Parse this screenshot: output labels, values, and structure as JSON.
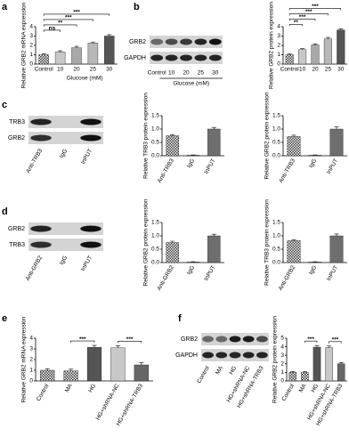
{
  "panel_labels": [
    "a",
    "b",
    "c",
    "d",
    "e",
    "f"
  ],
  "blots": [
    {
      "rows": [
        "GRB2",
        "GAPDH"
      ],
      "lanes": [
        "Control",
        "10",
        "20",
        "25",
        "30"
      ],
      "lane_title": "Glucose (mM)"
    },
    {
      "rows": [
        "TRB3",
        "GRB2"
      ],
      "lanes": [
        "Anti-TRB3",
        "IgG",
        "InPUT"
      ]
    },
    {
      "rows": [
        "GRB2",
        "TRB3"
      ],
      "lanes": [
        "Anti-GRB2",
        "IgG",
        "InPUT"
      ]
    },
    {
      "rows": [
        "GRB2",
        "GAPDH"
      ],
      "lanes": [
        "Control",
        "MA",
        "HG",
        "HG+shRNA-NC",
        "HG+shRNA-TRB3"
      ]
    }
  ],
  "chart_data": [
    {
      "type": "bar",
      "ylabel": "Relative GRB2 mRNA expression",
      "xlabel": "Glucose (mM)",
      "categories": [
        "Control",
        "10",
        "20",
        "25",
        "30"
      ],
      "values": [
        1.0,
        1.3,
        1.75,
        2.25,
        3.0
      ],
      "errors": [
        0.08,
        0.12,
        0.15,
        0.12,
        0.15
      ],
      "colors": [
        "checker",
        "#c8c8c8",
        "#a8a8a8",
        "#b8b8b8",
        "#555555"
      ],
      "ylim": [
        0,
        4
      ],
      "yticks": [
        0,
        1,
        2,
        3,
        4
      ],
      "annotations": [
        {
          "text": "ns",
          "span": [
            0,
            1
          ]
        },
        {
          "text": "**",
          "span": [
            0,
            2
          ]
        },
        {
          "text": "***",
          "span": [
            0,
            3
          ]
        },
        {
          "text": "***",
          "span": [
            0,
            4
          ]
        }
      ]
    },
    {
      "type": "bar",
      "ylabel": "Relative GRB2 protein expression",
      "categories": [
        "Control",
        "10",
        "20",
        "25",
        "30"
      ],
      "values": [
        1.0,
        1.55,
        2.05,
        2.7,
        3.65
      ],
      "errors": [
        0.08,
        0.1,
        0.12,
        0.15,
        0.12
      ],
      "colors": [
        "checker",
        "#c8c8c8",
        "#a8a8a8",
        "#b8b8b8",
        "#555555"
      ],
      "ylim": [
        0,
        4
      ],
      "yticks": [
        0,
        1,
        2,
        3,
        4
      ],
      "annotations": [
        {
          "text": "**",
          "span": [
            0,
            1
          ]
        },
        {
          "text": "***",
          "span": [
            0,
            2
          ]
        },
        {
          "text": "***",
          "span": [
            0,
            3
          ]
        },
        {
          "text": "***",
          "span": [
            0,
            4
          ]
        }
      ]
    },
    {
      "type": "bar",
      "ylabel": "Relative TRB3 protein expression",
      "categories": [
        "Anti-TRB3",
        "IgG",
        "InPUT"
      ],
      "values": [
        0.75,
        0.02,
        1.0
      ],
      "errors": [
        0.03,
        0.01,
        0.06
      ],
      "colors": [
        "checker",
        "#6e6e6e",
        "#6e6e6e"
      ],
      "ylim": [
        0,
        1.5
      ],
      "yticks": [
        {
          "value": 0,
          "label": "0.0"
        },
        {
          "value": 0.5,
          "label": "0.5"
        },
        {
          "value": 1,
          "label": "1.0"
        },
        {
          "value": 1.5,
          "label": "1.5"
        }
      ]
    },
    {
      "type": "bar",
      "ylabel": "Relative GRB2 protein expression",
      "categories": [
        "Anti-TRB3",
        "IgG",
        "InPUT"
      ],
      "values": [
        0.72,
        0.02,
        1.0
      ],
      "errors": [
        0.05,
        0.01,
        0.08
      ],
      "colors": [
        "checker",
        "#6e6e6e",
        "#6e6e6e"
      ],
      "ylim": [
        0,
        1.5
      ],
      "yticks": [
        {
          "value": 0,
          "label": "0.0"
        },
        {
          "value": 0.5,
          "label": "0.5"
        },
        {
          "value": 1,
          "label": "1.0"
        },
        {
          "value": 1.5,
          "label": "1.5"
        }
      ]
    },
    {
      "type": "bar",
      "ylabel": "Relative GRB2 protein expression",
      "categories": [
        "Anti-GRB2",
        "IgG",
        "InPUT"
      ],
      "values": [
        0.75,
        0.02,
        1.0
      ],
      "errors": [
        0.05,
        0.01,
        0.06
      ],
      "colors": [
        "checker",
        "#6e6e6e",
        "#6e6e6e"
      ],
      "ylim": [
        0,
        1.5
      ],
      "yticks": [
        {
          "value": 0,
          "label": "0.0"
        },
        {
          "value": 0.5,
          "label": "0.5"
        },
        {
          "value": 1,
          "label": "1.0"
        },
        {
          "value": 1.5,
          "label": "1.5"
        }
      ]
    },
    {
      "type": "bar",
      "ylabel": "Relative TRB3 protein expression",
      "categories": [
        "Anti-GRB2",
        "IgG",
        "InPUT"
      ],
      "values": [
        0.82,
        0.02,
        1.0
      ],
      "errors": [
        0.04,
        0.01,
        0.07
      ],
      "colors": [
        "checker",
        "#6e6e6e",
        "#6e6e6e"
      ],
      "ylim": [
        0,
        1.5
      ],
      "yticks": [
        {
          "value": 0,
          "label": "0.0"
        },
        {
          "value": 0.5,
          "label": "0.5"
        },
        {
          "value": 1,
          "label": "1.0"
        },
        {
          "value": 1.5,
          "label": "1.5"
        }
      ]
    },
    {
      "type": "bar",
      "ylabel": "Relative GRB2 mRNA expression",
      "categories": [
        "Control",
        "MA",
        "HG",
        "HG+shRNA-NC",
        "HG+shRNA-TRB3"
      ],
      "values": [
        1.0,
        0.95,
        3.15,
        3.1,
        1.5
      ],
      "errors": [
        0.15,
        0.15,
        0.18,
        0.2,
        0.2
      ],
      "colors": [
        "checker",
        "checker",
        "#555555",
        "#c8c8c8",
        "#666666"
      ],
      "ylim": [
        0,
        4
      ],
      "yticks": [
        0,
        1,
        2,
        3,
        4
      ],
      "annotations": [
        {
          "text": "***",
          "span": [
            1,
            2
          ]
        },
        {
          "text": "***",
          "span": [
            3,
            4
          ]
        }
      ]
    },
    {
      "type": "bar",
      "ylabel": "Relative GRB2 protein expression",
      "categories": [
        "Control",
        "MA",
        "HG",
        "HG+shRNA-NC",
        "HG+shRNA-TRB3"
      ],
      "values": [
        1.0,
        1.0,
        3.95,
        3.9,
        2.0
      ],
      "errors": [
        0.1,
        0.12,
        0.2,
        0.18,
        0.15
      ],
      "colors": [
        "checker",
        "checker",
        "#555555",
        "#c8c8c8",
        "#666666"
      ],
      "ylim": [
        0,
        5
      ],
      "yticks": [
        0,
        1,
        2,
        3,
        4,
        5
      ],
      "annotations": [
        {
          "text": "***",
          "span": [
            1,
            2
          ]
        },
        {
          "text": "***",
          "span": [
            3,
            4
          ]
        }
      ]
    }
  ]
}
